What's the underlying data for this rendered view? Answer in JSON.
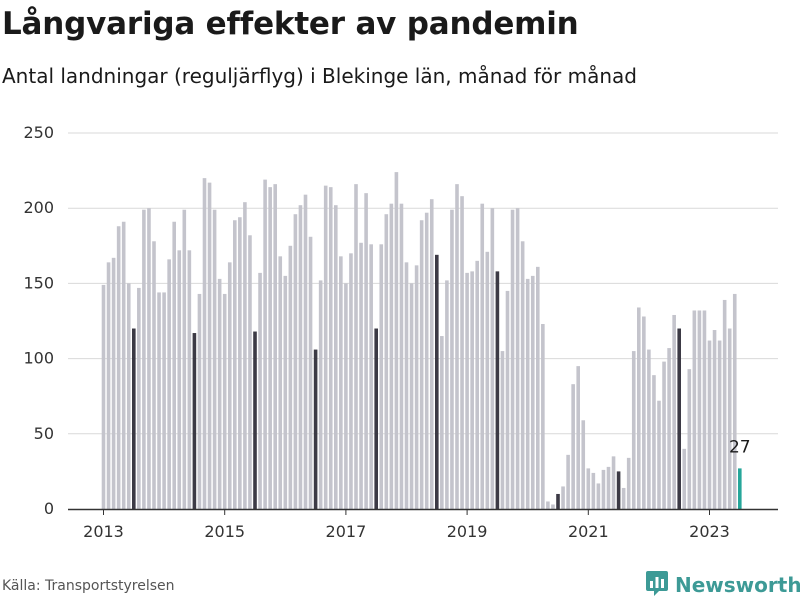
{
  "header": {
    "title": "Långvariga effekter av pandemin",
    "subtitle": "Antal landningar (reguljärflyg) i Blekinge län, månad för månad"
  },
  "footer": {
    "source": "Källa: Transportstyrelsen",
    "brand": "Newsworthy",
    "brand_icon": "newsworthy-logo-icon"
  },
  "colors": {
    "bar_default": "#c4c4cc",
    "bar_july": "#3c3a45",
    "bar_latest": "#26a69a",
    "grid": "#d9d9d9",
    "axis": "#333333",
    "brand": "#3d9a96"
  },
  "chart_data": {
    "type": "bar",
    "title": "Långvariga effekter av pandemin",
    "subtitle": "Antal landningar (reguljärflyg) i Blekinge län, månad för månad",
    "xlabel": "",
    "ylabel": "",
    "ylim": [
      0,
      250
    ],
    "yticks": [
      0,
      50,
      100,
      150,
      200,
      250
    ],
    "xticks": [
      "2013",
      "2015",
      "2017",
      "2019",
      "2021",
      "2023"
    ],
    "grid": true,
    "highlight": "July bars are drawn dark; the latest month is highlighted in teal and labelled",
    "annotation": {
      "month": "2023-07",
      "label": "27"
    },
    "months": [
      "2013-01",
      "2013-02",
      "2013-03",
      "2013-04",
      "2013-05",
      "2013-06",
      "2013-07",
      "2013-08",
      "2013-09",
      "2013-10",
      "2013-11",
      "2013-12",
      "2014-01",
      "2014-02",
      "2014-03",
      "2014-04",
      "2014-05",
      "2014-06",
      "2014-07",
      "2014-08",
      "2014-09",
      "2014-10",
      "2014-11",
      "2014-12",
      "2015-01",
      "2015-02",
      "2015-03",
      "2015-04",
      "2015-05",
      "2015-06",
      "2015-07",
      "2015-08",
      "2015-09",
      "2015-10",
      "2015-11",
      "2015-12",
      "2016-01",
      "2016-02",
      "2016-03",
      "2016-04",
      "2016-05",
      "2016-06",
      "2016-07",
      "2016-08",
      "2016-09",
      "2016-10",
      "2016-11",
      "2016-12",
      "2017-01",
      "2017-02",
      "2017-03",
      "2017-04",
      "2017-05",
      "2017-06",
      "2017-07",
      "2017-08",
      "2017-09",
      "2017-10",
      "2017-11",
      "2017-12",
      "2018-01",
      "2018-02",
      "2018-03",
      "2018-04",
      "2018-05",
      "2018-06",
      "2018-07",
      "2018-08",
      "2018-09",
      "2018-10",
      "2018-11",
      "2018-12",
      "2019-01",
      "2019-02",
      "2019-03",
      "2019-04",
      "2019-05",
      "2019-06",
      "2019-07",
      "2019-08",
      "2019-09",
      "2019-10",
      "2019-11",
      "2019-12",
      "2020-01",
      "2020-02",
      "2020-03",
      "2020-04",
      "2020-05",
      "2020-06",
      "2020-07",
      "2020-08",
      "2020-09",
      "2020-10",
      "2020-11",
      "2020-12",
      "2021-01",
      "2021-02",
      "2021-03",
      "2021-04",
      "2021-05",
      "2021-06",
      "2021-07",
      "2021-08",
      "2021-09",
      "2021-10",
      "2021-11",
      "2021-12",
      "2022-01",
      "2022-02",
      "2022-03",
      "2022-04",
      "2022-05",
      "2022-06",
      "2022-07",
      "2022-08",
      "2022-09",
      "2022-10",
      "2022-11",
      "2022-12",
      "2023-01",
      "2023-02",
      "2023-03",
      "2023-04",
      "2023-05",
      "2023-06",
      "2023-07"
    ],
    "values": [
      149,
      164,
      167,
      188,
      191,
      150,
      120,
      147,
      199,
      200,
      178,
      144,
      144,
      166,
      191,
      172,
      199,
      172,
      117,
      143,
      220,
      217,
      199,
      153,
      143,
      164,
      192,
      194,
      204,
      182,
      118,
      157,
      219,
      214,
      216,
      168,
      155,
      175,
      196,
      202,
      209,
      181,
      106,
      152,
      215,
      214,
      202,
      168,
      150,
      170,
      216,
      177,
      210,
      176,
      120,
      176,
      196,
      203,
      224,
      203,
      164,
      150,
      162,
      192,
      197,
      206,
      169,
      115,
      152,
      199,
      216,
      208,
      157,
      158,
      165,
      203,
      171,
      200,
      158,
      105,
      145,
      199,
      200,
      178,
      153,
      155,
      161,
      123,
      5,
      3,
      10,
      15,
      36,
      83,
      95,
      59,
      27,
      24,
      17,
      26,
      28,
      35,
      25,
      14,
      34,
      105,
      134,
      128,
      106,
      89,
      72,
      98,
      107,
      129,
      120,
      40,
      93,
      132,
      132,
      132,
      112,
      119,
      112,
      139,
      120,
      143,
      27
    ]
  }
}
